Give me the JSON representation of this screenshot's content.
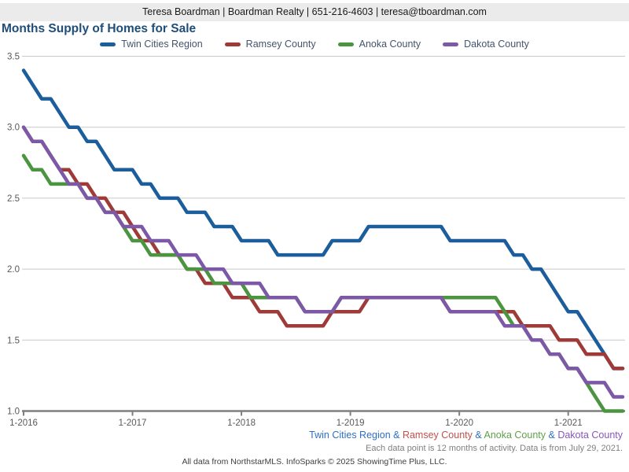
{
  "header": {
    "contact": "Teresa Boardman | Boardman Realty | 651-216-4603 | teresa@tboardman.com"
  },
  "chart": {
    "title": "Months Supply of Homes for Sale",
    "title_color": "#1f4e79",
    "legend_text_color": "#44546a"
  },
  "chart_data": {
    "type": "line",
    "title": "Months Supply of Homes for Sale",
    "x_start": "1-2016",
    "x_end": "7-2021",
    "x_interval": "monthly",
    "ylim": [
      1.0,
      3.5
    ],
    "y_ticks": [
      3.5,
      3.0,
      2.5,
      2.0,
      1.5,
      1.0
    ],
    "x_tick_labels": [
      "1-2016",
      "1-2017",
      "1-2018",
      "1-2019",
      "1-2020",
      "1-2021"
    ],
    "x_tick_month_index": [
      0,
      12,
      24,
      36,
      48,
      60
    ],
    "grid": "horizontal",
    "legend_position": "top",
    "gridline_color": "#c9c9c9",
    "axis_color": "#7f7f7f",
    "series": [
      {
        "name": "Twin Cities Region",
        "color": "#1b5e9b",
        "values": [
          3.4,
          3.3,
          3.2,
          3.2,
          3.1,
          3.0,
          3.0,
          2.9,
          2.9,
          2.8,
          2.7,
          2.7,
          2.7,
          2.6,
          2.6,
          2.5,
          2.5,
          2.5,
          2.4,
          2.4,
          2.4,
          2.3,
          2.3,
          2.3,
          2.2,
          2.2,
          2.2,
          2.2,
          2.1,
          2.1,
          2.1,
          2.1,
          2.1,
          2.1,
          2.2,
          2.2,
          2.2,
          2.2,
          2.3,
          2.3,
          2.3,
          2.3,
          2.3,
          2.3,
          2.3,
          2.3,
          2.3,
          2.2,
          2.2,
          2.2,
          2.2,
          2.2,
          2.2,
          2.2,
          2.1,
          2.1,
          2.0,
          2.0,
          1.9,
          1.8,
          1.7,
          1.7,
          1.6,
          1.5,
          1.4,
          1.3,
          1.3
        ]
      },
      {
        "name": "Ramsey County",
        "color": "#9e3b39",
        "values": [
          3.0,
          2.9,
          2.9,
          2.8,
          2.7,
          2.7,
          2.6,
          2.6,
          2.5,
          2.5,
          2.4,
          2.4,
          2.3,
          2.2,
          2.2,
          2.1,
          2.1,
          2.1,
          2.0,
          2.0,
          1.9,
          1.9,
          1.9,
          1.8,
          1.8,
          1.8,
          1.7,
          1.7,
          1.7,
          1.6,
          1.6,
          1.6,
          1.6,
          1.6,
          1.7,
          1.7,
          1.7,
          1.7,
          1.8,
          1.8,
          1.8,
          1.8,
          1.8,
          1.8,
          1.8,
          1.8,
          1.8,
          1.7,
          1.7,
          1.7,
          1.7,
          1.7,
          1.7,
          1.7,
          1.7,
          1.6,
          1.6,
          1.6,
          1.6,
          1.5,
          1.5,
          1.5,
          1.4,
          1.4,
          1.4,
          1.3,
          1.3
        ]
      },
      {
        "name": "Anoka County",
        "color": "#4b9440",
        "values": [
          2.8,
          2.7,
          2.7,
          2.6,
          2.6,
          2.6,
          2.6,
          2.5,
          2.5,
          2.4,
          2.4,
          2.3,
          2.2,
          2.2,
          2.1,
          2.1,
          2.1,
          2.1,
          2.0,
          2.0,
          2.0,
          1.9,
          1.9,
          1.9,
          1.9,
          1.8,
          1.8,
          1.8,
          1.8,
          1.8,
          1.8,
          1.7,
          1.7,
          1.7,
          1.7,
          1.8,
          1.8,
          1.8,
          1.8,
          1.8,
          1.8,
          1.8,
          1.8,
          1.8,
          1.8,
          1.8,
          1.8,
          1.8,
          1.8,
          1.8,
          1.8,
          1.8,
          1.8,
          1.7,
          1.6,
          1.6,
          1.5,
          1.5,
          1.4,
          1.4,
          1.3,
          1.3,
          1.2,
          1.1,
          1.0,
          1.0,
          1.0
        ]
      },
      {
        "name": "Dakota County",
        "color": "#7c58a7",
        "values": [
          3.0,
          2.9,
          2.9,
          2.8,
          2.7,
          2.6,
          2.6,
          2.5,
          2.5,
          2.4,
          2.4,
          2.3,
          2.3,
          2.3,
          2.2,
          2.2,
          2.2,
          2.1,
          2.1,
          2.1,
          2.0,
          2.0,
          2.0,
          1.9,
          1.9,
          1.9,
          1.9,
          1.8,
          1.8,
          1.8,
          1.8,
          1.7,
          1.7,
          1.7,
          1.7,
          1.8,
          1.8,
          1.8,
          1.8,
          1.8,
          1.8,
          1.8,
          1.8,
          1.8,
          1.8,
          1.8,
          1.8,
          1.7,
          1.7,
          1.7,
          1.7,
          1.7,
          1.7,
          1.6,
          1.6,
          1.6,
          1.5,
          1.5,
          1.4,
          1.4,
          1.3,
          1.3,
          1.2,
          1.2,
          1.2,
          1.1,
          1.1
        ]
      }
    ]
  },
  "footer": {
    "series_note_parts": [
      {
        "text": "Twin Cities Region",
        "color": "#2e6fc2"
      },
      {
        "text": " & ",
        "color": "#2e6fc2"
      },
      {
        "text": "Ramsey County",
        "color": "#c0504d"
      },
      {
        "text": " & ",
        "color": "#2e6fc2"
      },
      {
        "text": "Anoka County",
        "color": "#5fa049"
      },
      {
        "text": " & ",
        "color": "#2e6fc2"
      },
      {
        "text": "Dakota County",
        "color": "#8757ba"
      }
    ],
    "data_note": "Each data point is 12 months of activity. Data is from July 29, 2021.",
    "attribution": "All data from NorthstarMLS. InfoSparks © 2025 ShowingTime Plus, LLC."
  }
}
